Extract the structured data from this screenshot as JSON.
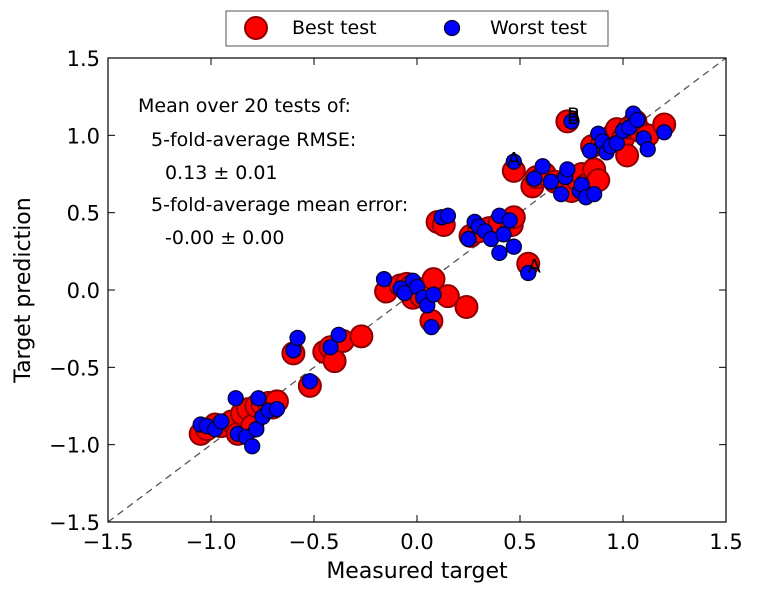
{
  "chart_data": {
    "type": "scatter",
    "xlabel": "Measured target",
    "ylabel": "Target prediction",
    "xlim": [
      -1.5,
      1.5
    ],
    "ylim": [
      -1.5,
      1.5
    ],
    "x_ticks": [
      "−1.5",
      "−1.0",
      "−0.5",
      "0.0",
      "0.5",
      "1.0",
      "1.5"
    ],
    "y_ticks": [
      "−1.5",
      "−1.0",
      "−0.5",
      "0.0",
      "0.5",
      "1.0",
      "1.5"
    ],
    "grid": false,
    "legend_position": "top-center",
    "reference_line": "y = x (dashed)",
    "annotation_lines": [
      "Mean over 20 tests of:",
      "5-fold-average RMSE:",
      "0.13 ± 0.01",
      "5-fold-average mean error:",
      "-0.00 ± 0.00"
    ],
    "series": [
      {
        "name": "Best test",
        "color": "#ff0000",
        "edge_color": "#8b0000",
        "points": [
          [
            -1.05,
            -0.93
          ],
          [
            -1.02,
            -0.9
          ],
          [
            -0.98,
            -0.87
          ],
          [
            -0.95,
            -0.88
          ],
          [
            -0.9,
            -0.85
          ],
          [
            -0.87,
            -0.93
          ],
          [
            -0.85,
            -0.8
          ],
          [
            -0.82,
            -0.77
          ],
          [
            -0.8,
            -0.88
          ],
          [
            -0.78,
            -0.75
          ],
          [
            -0.75,
            -0.74
          ],
          [
            -0.72,
            -0.73
          ],
          [
            -0.7,
            -0.76
          ],
          [
            -0.68,
            -0.72
          ],
          [
            -0.6,
            -0.41
          ],
          [
            -0.52,
            -0.62
          ],
          [
            -0.45,
            -0.4
          ],
          [
            -0.42,
            -0.37
          ],
          [
            -0.4,
            -0.46
          ],
          [
            -0.36,
            -0.33
          ],
          [
            -0.27,
            -0.3
          ],
          [
            -0.15,
            -0.01
          ],
          [
            -0.08,
            0.03
          ],
          [
            -0.05,
            0.04
          ],
          [
            -0.03,
            0.02
          ],
          [
            -0.02,
            -0.05
          ],
          [
            0.0,
            0.01
          ],
          [
            0.02,
            -0.04
          ],
          [
            0.05,
            -0.02
          ],
          [
            0.07,
            -0.2
          ],
          [
            0.1,
            0.44
          ],
          [
            0.13,
            0.42
          ],
          [
            0.08,
            0.07
          ],
          [
            0.15,
            -0.04
          ],
          [
            0.24,
            -0.11
          ],
          [
            0.26,
            0.35
          ],
          [
            0.3,
            0.38
          ],
          [
            0.35,
            0.4
          ],
          [
            0.4,
            0.43
          ],
          [
            0.46,
            0.42
          ],
          [
            0.47,
            0.47
          ],
          [
            0.47,
            0.77
          ],
          [
            0.54,
            0.17
          ],
          [
            0.56,
            0.67
          ],
          [
            0.58,
            0.73
          ],
          [
            0.62,
            0.75
          ],
          [
            0.67,
            0.7
          ],
          [
            0.7,
            0.68
          ],
          [
            0.73,
            1.09
          ],
          [
            0.75,
            0.64
          ],
          [
            0.78,
            0.71
          ],
          [
            0.8,
            0.75
          ],
          [
            0.82,
            0.68
          ],
          [
            0.85,
            0.93
          ],
          [
            0.86,
            0.78
          ],
          [
            0.88,
            0.71
          ],
          [
            0.9,
            0.95
          ],
          [
            0.93,
            0.97
          ],
          [
            0.95,
            1.0
          ],
          [
            0.97,
            1.04
          ],
          [
            1.0,
            0.98
          ],
          [
            1.02,
            0.87
          ],
          [
            1.03,
            1.05
          ],
          [
            1.06,
            1.09
          ],
          [
            1.08,
            1.03
          ],
          [
            1.12,
            1.0
          ],
          [
            1.2,
            1.07
          ]
        ]
      },
      {
        "name": "Worst test",
        "color": "#0000ff",
        "edge_color": "#000033",
        "points": [
          [
            -1.05,
            -0.87
          ],
          [
            -1.02,
            -0.88
          ],
          [
            -0.98,
            -0.9
          ],
          [
            -0.95,
            -0.85
          ],
          [
            -0.88,
            -0.7
          ],
          [
            -0.87,
            -0.93
          ],
          [
            -0.83,
            -0.95
          ],
          [
            -0.8,
            -1.01
          ],
          [
            -0.78,
            -0.9
          ],
          [
            -0.77,
            -0.7
          ],
          [
            -0.75,
            -0.82
          ],
          [
            -0.72,
            -0.78
          ],
          [
            -0.68,
            -0.77
          ],
          [
            -0.6,
            -0.39
          ],
          [
            -0.58,
            -0.31
          ],
          [
            -0.52,
            -0.59
          ],
          [
            -0.42,
            -0.37
          ],
          [
            -0.38,
            -0.29
          ],
          [
            -0.16,
            0.07
          ],
          [
            -0.08,
            0.01
          ],
          [
            -0.06,
            -0.02
          ],
          [
            -0.02,
            0.06
          ],
          [
            0.0,
            0.02
          ],
          [
            0.03,
            -0.05
          ],
          [
            0.05,
            -0.1
          ],
          [
            0.07,
            -0.24
          ],
          [
            0.08,
            -0.03
          ],
          [
            0.12,
            0.47
          ],
          [
            0.15,
            0.48
          ],
          [
            0.25,
            0.33
          ],
          [
            0.28,
            0.44
          ],
          [
            0.3,
            0.41
          ],
          [
            0.33,
            0.38
          ],
          [
            0.36,
            0.33
          ],
          [
            0.4,
            0.48
          ],
          [
            0.4,
            0.24
          ],
          [
            0.42,
            0.36
          ],
          [
            0.45,
            0.45
          ],
          [
            0.47,
            0.28
          ],
          [
            0.47,
            0.83
          ],
          [
            0.54,
            0.11
          ],
          [
            0.57,
            0.72
          ],
          [
            0.61,
            0.8
          ],
          [
            0.65,
            0.7
          ],
          [
            0.7,
            0.62
          ],
          [
            0.72,
            0.73
          ],
          [
            0.73,
            0.78
          ],
          [
            0.75,
            1.09
          ],
          [
            0.79,
            0.64
          ],
          [
            0.8,
            0.68
          ],
          [
            0.82,
            0.6
          ],
          [
            0.84,
            0.9
          ],
          [
            0.86,
            0.62
          ],
          [
            0.88,
            1.01
          ],
          [
            0.9,
            0.96
          ],
          [
            0.92,
            0.89
          ],
          [
            0.94,
            0.93
          ],
          [
            0.97,
            0.95
          ],
          [
            1.0,
            1.03
          ],
          [
            1.03,
            1.05
          ],
          [
            1.05,
            1.14
          ],
          [
            1.07,
            1.1
          ],
          [
            1.1,
            0.98
          ],
          [
            1.12,
            0.91
          ],
          [
            1.2,
            1.02
          ]
        ]
      }
    ],
    "point_labels": [
      {
        "text": "A",
        "x": 0.47,
        "y": 0.83
      },
      {
        "text": "A",
        "x": 0.57,
        "y": 0.14
      },
      {
        "text": "B",
        "x": 0.76,
        "y": 1.12
      },
      {
        "text": "B",
        "x": 0.76,
        "y": 1.1
      }
    ]
  }
}
